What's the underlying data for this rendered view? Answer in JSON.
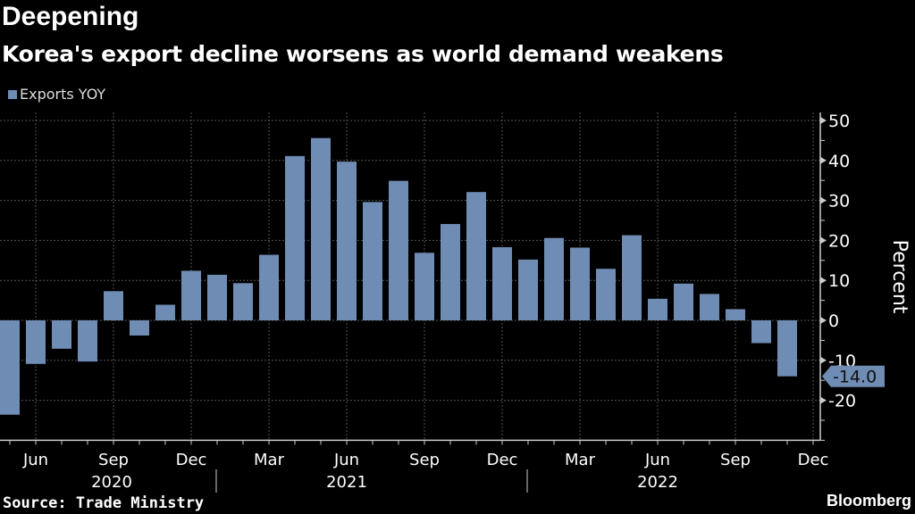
{
  "chart_data": {
    "type": "bar",
    "title": "Deepening",
    "subtitle": "Korea's export decline worsens as world demand weakens",
    "legend": "Exports YOY",
    "ylabel": "Percent",
    "xlabel": "",
    "ylim": [
      -30,
      52
    ],
    "yticks": [
      -20,
      -10,
      0,
      10,
      20,
      30,
      40,
      50
    ],
    "x_month_labels": [
      {
        "label": "Jun",
        "index": 1
      },
      {
        "label": "Sep",
        "index": 4
      },
      {
        "label": "Dec",
        "index": 7
      },
      {
        "label": "Mar",
        "index": 10
      },
      {
        "label": "Jun",
        "index": 13
      },
      {
        "label": "Sep",
        "index": 16
      },
      {
        "label": "Dec",
        "index": 19
      },
      {
        "label": "Mar",
        "index": 22
      },
      {
        "label": "Jun",
        "index": 25
      },
      {
        "label": "Sep",
        "index": 28
      },
      {
        "label": "Dec",
        "index": 31
      }
    ],
    "year_labels": [
      "2020",
      "2021",
      "2022"
    ],
    "categories": [
      "2020-05",
      "2020-06",
      "2020-07",
      "2020-08",
      "2020-09",
      "2020-10",
      "2020-11",
      "2020-12",
      "2021-01",
      "2021-02",
      "2021-03",
      "2021-04",
      "2021-05",
      "2021-06",
      "2021-07",
      "2021-08",
      "2021-09",
      "2021-10",
      "2021-11",
      "2021-12",
      "2022-01",
      "2022-02",
      "2022-03",
      "2022-04",
      "2022-05",
      "2022-06",
      "2022-07",
      "2022-08",
      "2022-09",
      "2022-10",
      "2022-11"
    ],
    "values": [
      -23.6,
      -10.9,
      -7.1,
      -10.3,
      7.3,
      -3.8,
      3.9,
      12.4,
      11.4,
      9.3,
      16.4,
      41.1,
      45.6,
      39.7,
      29.6,
      34.9,
      16.9,
      24.1,
      32.1,
      18.3,
      15.2,
      20.6,
      18.2,
      12.9,
      21.3,
      5.4,
      9.2,
      6.6,
      2.8,
      -5.7,
      -14.0
    ],
    "last_value_label": "-14.0",
    "bar_color": "#6f8cb4",
    "grid": true
  },
  "footer": {
    "source": "Source: Trade Ministry",
    "brand": "Bloomberg"
  }
}
